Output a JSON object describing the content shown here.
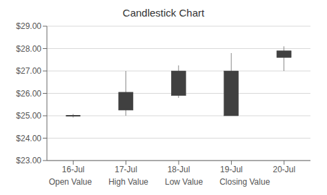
{
  "chart_data": {
    "type": "candlestick",
    "title": "Candlestick Chart",
    "categories": [
      "16-Jul",
      "17-Jul",
      "18-Jul",
      "19-Jul",
      "20-Jul"
    ],
    "series": [
      {
        "name": "Open Value",
        "color": "#404040",
        "values": [
          25.0,
          25.25,
          25.9,
          25.0,
          27.6
        ]
      },
      {
        "name": "High Value",
        "color": "#888888",
        "values": [
          25.08,
          27.0,
          27.25,
          27.8,
          28.1
        ]
      },
      {
        "name": "Low Value",
        "color": "#888888",
        "values": [
          24.92,
          25.0,
          25.8,
          25.0,
          27.0
        ]
      },
      {
        "name": "Closing Value",
        "color": "#404040",
        "values": [
          25.0,
          26.05,
          27.0,
          27.0,
          27.9
        ]
      }
    ],
    "ylim": [
      23.0,
      29.0
    ],
    "yticks": [
      {
        "value": 23.0,
        "label": "$23.00"
      },
      {
        "value": 24.0,
        "label": "$24.00"
      },
      {
        "value": 25.0,
        "label": "$25.00"
      },
      {
        "value": 26.0,
        "label": "$26.00"
      },
      {
        "value": 27.0,
        "label": "$27.00"
      },
      {
        "value": 28.0,
        "label": "$28.00"
      },
      {
        "value": 29.0,
        "label": "$29.00"
      }
    ],
    "grid": true,
    "legend": "bottom"
  }
}
